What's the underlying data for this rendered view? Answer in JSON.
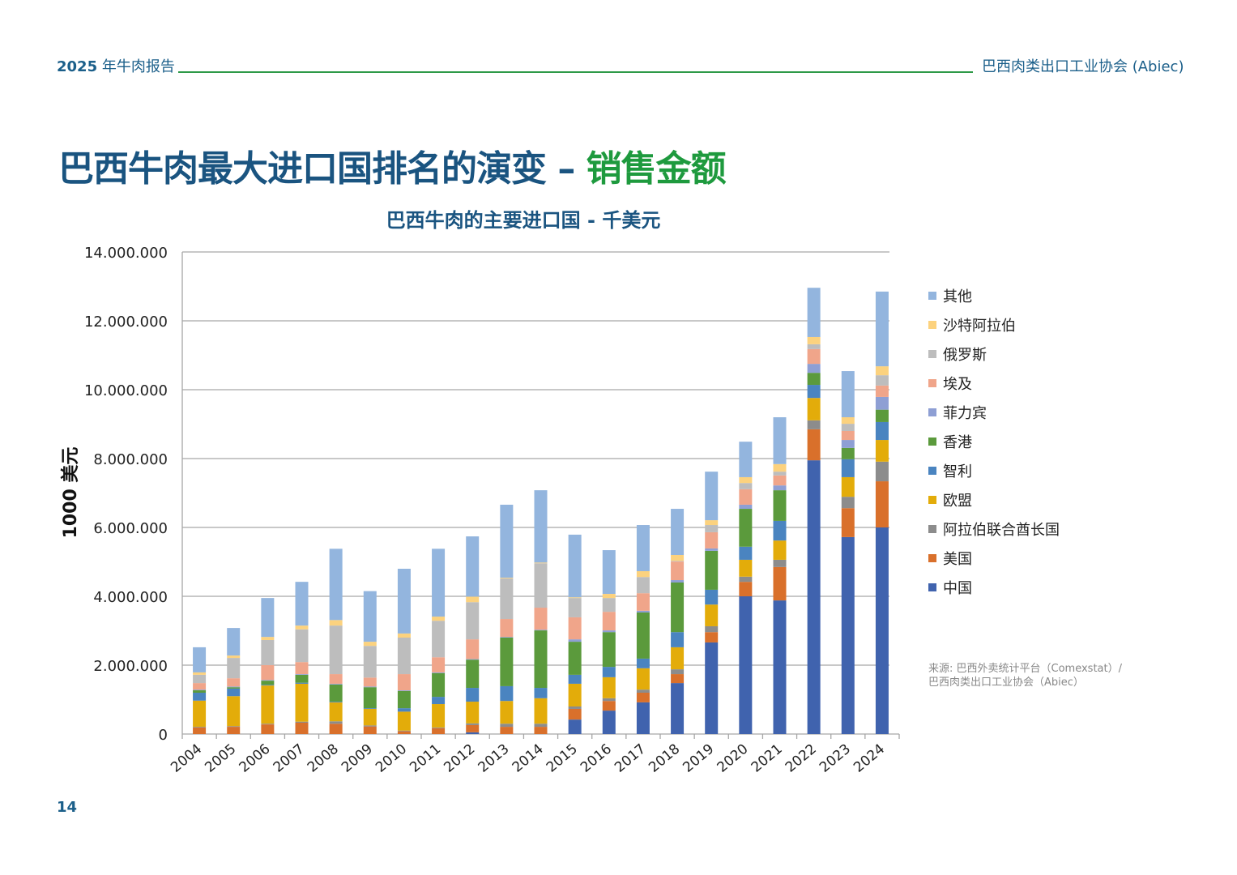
{
  "header": {
    "report_year": "2025",
    "report_title": "年牛肉报告",
    "organization": "巴西肉类出口工业协会 (Abiec)"
  },
  "page": {
    "title_main": "巴西牛肉最大进口国排名的演变 – ",
    "title_accent": "销售金额",
    "page_number": "14",
    "source_line1": "来源: 巴西外卖统计平台（Comexstat）/",
    "source_line2": "巴西肉类出口工业协会（Abiec）"
  },
  "colors": {
    "title": "#1a5480",
    "accent": "#1e9a3e",
    "header_line": "#2e9a48"
  },
  "chart_data": {
    "type": "bar",
    "stacked": true,
    "title": "巴西牛肉的主要进口国 - 千美元",
    "xlabel": "",
    "ylabel": "1000 美元",
    "ylim": [
      0,
      14000000
    ],
    "yticks": [
      0,
      2000000,
      4000000,
      6000000,
      8000000,
      10000000,
      12000000,
      14000000
    ],
    "ytick_labels": [
      "0",
      "2.000.000",
      "4.000.000",
      "6.000.000",
      "8.000.000",
      "10.000.000",
      "12.000.000",
      "14.000.000"
    ],
    "grid": true,
    "legend_position": "right",
    "categories": [
      "2004",
      "2005",
      "2006",
      "2007",
      "2008",
      "2009",
      "2010",
      "2011",
      "2012",
      "2013",
      "2014",
      "2015",
      "2016",
      "2017",
      "2018",
      "2019",
      "2020",
      "2021",
      "2022",
      "2023",
      "2024"
    ],
    "series": [
      {
        "name": "中国",
        "color": "#4063ae",
        "values": [
          0,
          0,
          0,
          0,
          0,
          0,
          0,
          0,
          50000,
          0,
          0,
          420000,
          680000,
          920000,
          1480000,
          2660000,
          4000000,
          3880000,
          7950000,
          5720000,
          6000000
        ]
      },
      {
        "name": "美国",
        "color": "#d9702b",
        "values": [
          190000,
          210000,
          280000,
          330000,
          300000,
          220000,
          80000,
          170000,
          210000,
          210000,
          210000,
          310000,
          280000,
          280000,
          260000,
          300000,
          420000,
          970000,
          900000,
          840000,
          1340000
        ]
      },
      {
        "name": "阿拉伯联合酋长国",
        "color": "#8c8c8c",
        "values": [
          20000,
          20000,
          20000,
          30000,
          70000,
          30000,
          20000,
          20000,
          50000,
          90000,
          90000,
          70000,
          80000,
          90000,
          140000,
          170000,
          150000,
          210000,
          260000,
          330000,
          570000
        ]
      },
      {
        "name": "欧盟",
        "color": "#e3ac0a",
        "values": [
          760000,
          870000,
          1110000,
          1100000,
          550000,
          480000,
          550000,
          680000,
          630000,
          660000,
          740000,
          660000,
          610000,
          620000,
          640000,
          630000,
          490000,
          560000,
          650000,
          570000,
          630000
        ]
      },
      {
        "name": "智利",
        "color": "#4a84c0",
        "values": [
          230000,
          220000,
          20000,
          30000,
          20000,
          20000,
          100000,
          210000,
          400000,
          430000,
          300000,
          260000,
          300000,
          280000,
          440000,
          430000,
          380000,
          570000,
          380000,
          520000,
          520000
        ]
      },
      {
        "name": "香港",
        "color": "#5b9a3c",
        "values": [
          70000,
          40000,
          120000,
          230000,
          500000,
          610000,
          500000,
          690000,
          820000,
          1410000,
          1670000,
          960000,
          1010000,
          1340000,
          1440000,
          1130000,
          1100000,
          890000,
          350000,
          330000,
          360000
        ]
      },
      {
        "name": "菲力宾",
        "color": "#8e9fd4",
        "values": [
          20000,
          20000,
          20000,
          20000,
          20000,
          20000,
          20000,
          20000,
          20000,
          20000,
          20000,
          70000,
          50000,
          50000,
          70000,
          70000,
          120000,
          140000,
          260000,
          230000,
          370000
        ]
      },
      {
        "name": "埃及",
        "color": "#f0a58a",
        "values": [
          190000,
          240000,
          430000,
          350000,
          280000,
          260000,
          470000,
          440000,
          570000,
          520000,
          640000,
          640000,
          540000,
          510000,
          540000,
          470000,
          450000,
          290000,
          430000,
          260000,
          330000
        ]
      },
      {
        "name": "俄罗斯",
        "color": "#bdbdbd",
        "values": [
          240000,
          590000,
          730000,
          950000,
          1410000,
          920000,
          1060000,
          1060000,
          1080000,
          1180000,
          1290000,
          560000,
          400000,
          470000,
          20000,
          210000,
          180000,
          110000,
          140000,
          210000,
          300000
        ]
      },
      {
        "name": "沙特阿拉伯",
        "color": "#fcd27e",
        "values": [
          70000,
          70000,
          90000,
          110000,
          160000,
          120000,
          120000,
          120000,
          160000,
          20000,
          20000,
          20000,
          120000,
          170000,
          170000,
          140000,
          170000,
          220000,
          210000,
          190000,
          260000
        ]
      },
      {
        "name": "其他",
        "color": "#93b5de",
        "values": [
          730000,
          800000,
          1130000,
          1270000,
          2070000,
          1470000,
          1880000,
          1970000,
          1750000,
          2120000,
          2100000,
          1820000,
          1270000,
          1340000,
          1340000,
          1410000,
          1030000,
          1360000,
          1430000,
          1340000,
          2170000
        ]
      }
    ]
  }
}
